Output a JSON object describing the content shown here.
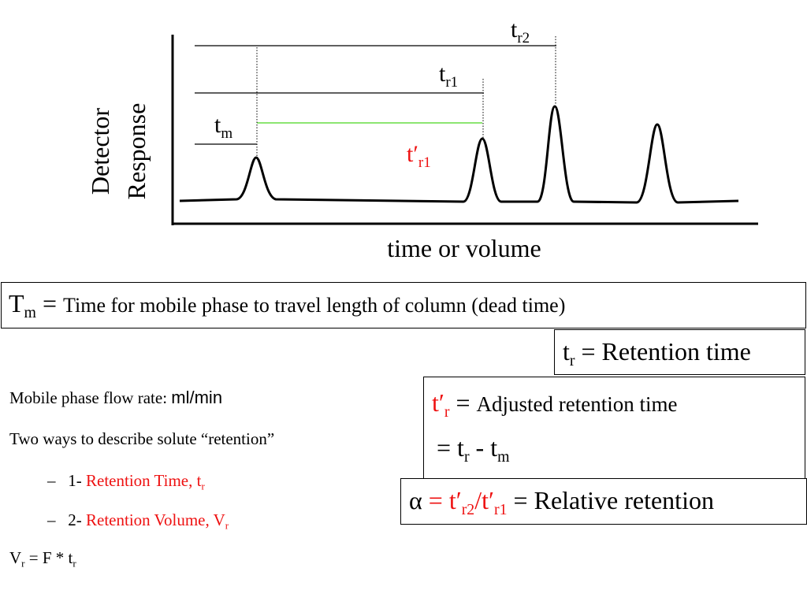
{
  "diagram": {
    "y_axis_label_line1": "Detector",
    "y_axis_label_line2": "Response",
    "x_axis_label": "time or volume",
    "markers": {
      "tr2": {
        "base": "t",
        "sub": "r2"
      },
      "tr1": {
        "base": "t",
        "sub": "r1"
      },
      "tm": {
        "base": "t",
        "sub": "m"
      },
      "tprime_r1": {
        "base": "t′",
        "sub": "r1",
        "color": "#ee1111"
      }
    },
    "colors": {
      "adjusted_line": "#66dd44",
      "accent_red": "#ee1111"
    }
  },
  "definitions": {
    "tm": {
      "symbol": "T",
      "sub": "m",
      "eq": " = ",
      "text": "Time for mobile phase to travel length of column (dead time)"
    },
    "tr": {
      "base": "t",
      "sub": "r",
      "text": " = Retention time"
    },
    "tprime": {
      "symbol": "t′",
      "sub": "r",
      "eq": " = ",
      "text": "Adjusted retention time",
      "line2_prefix": " = t",
      "line2_sub1": "r",
      "line2_mid": " - t",
      "line2_sub2": "m"
    },
    "alpha": {
      "symbol": "α",
      "eq_red": " = t′",
      "sub1": "r2",
      "slash": "/t′",
      "sub2": "r1",
      "text": " = Relative retention"
    }
  },
  "notes": {
    "flow_rate_label": "Mobile phase flow rate: ",
    "flow_rate_unit": "ml/min",
    "retention_intro": "Two ways to describe solute “retention”",
    "item1": {
      "dash": "–",
      "num": "1- ",
      "text": "Retention Time, t",
      "sub": "r"
    },
    "item2": {
      "dash": "–",
      "num": "2- ",
      "text": "Retention Volume, V",
      "sub": "r"
    },
    "formula": {
      "v": "V",
      "v_sub": "r",
      "mid": " = F * t",
      "t_sub": "r"
    }
  }
}
